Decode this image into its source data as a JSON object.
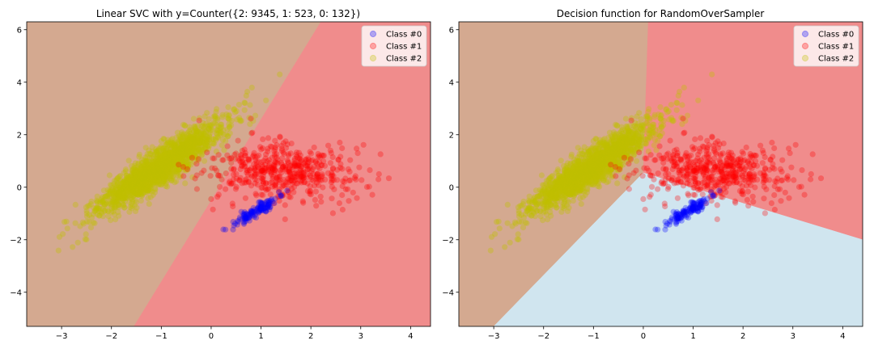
{
  "chart_data": [
    {
      "type": "scatter",
      "title": "Linear SVC with y=Counter({2: 9345, 1: 523, 0: 132})",
      "xlabel": "",
      "ylabel": "",
      "xlim": [
        -3.7,
        4.4
      ],
      "ylim": [
        -5.3,
        6.3
      ],
      "xticks": [
        -3,
        -2,
        -1,
        0,
        1,
        2,
        3,
        4
      ],
      "yticks": [
        -4,
        -2,
        0,
        2,
        4,
        6
      ],
      "grid": false,
      "legend_position": "top-right",
      "regions": [
        {
          "class": "Class #2",
          "color": "#d4a990",
          "polygon": [
            [
              -3.7,
              -5.3
            ],
            [
              -1.55,
              -5.3
            ],
            [
              2.2,
              6.3
            ],
            [
              -3.7,
              6.3
            ]
          ]
        },
        {
          "class": "Class #1",
          "color": "#f08c8c",
          "polygon": [
            [
              -1.55,
              -5.3
            ],
            [
              4.4,
              -5.3
            ],
            [
              4.4,
              6.3
            ],
            [
              2.2,
              6.3
            ]
          ]
        }
      ],
      "series": [
        {
          "name": "Class #0",
          "color": "#0000ff",
          "count": 132,
          "cluster": {
            "center": [
              0.9,
              -0.9
            ],
            "spread_main": 0.38,
            "spread_minor": 0.07,
            "angle_deg": 52
          }
        },
        {
          "name": "Class #1",
          "color": "#ff0000",
          "count": 523,
          "cluster": {
            "center": [
              1.4,
              0.6
            ],
            "spread_main": 0.75,
            "spread_minor": 0.55,
            "angle_deg": -15
          }
        },
        {
          "name": "Class #2",
          "color": "#bfbf00",
          "count": 9345,
          "cluster": {
            "center": [
              -1.0,
              0.8
            ],
            "spread_main": 1.05,
            "spread_minor": 0.22,
            "angle_deg": 55
          }
        }
      ]
    },
    {
      "type": "scatter",
      "title": "Decision function for RandomOverSampler",
      "xlabel": "",
      "ylabel": "",
      "xlim": [
        -3.7,
        4.4
      ],
      "ylim": [
        -5.3,
        6.3
      ],
      "xticks": [
        -3,
        -2,
        -1,
        0,
        1,
        2,
        3,
        4
      ],
      "yticks": [
        -4,
        -2,
        0,
        2,
        4,
        6
      ],
      "grid": false,
      "legend_position": "top-right",
      "regions": [
        {
          "class": "Class #2",
          "color": "#d4a990",
          "polygon": [
            [
              -3.7,
              -5.3
            ],
            [
              -3.0,
              -5.3
            ],
            [
              0.0,
              0.55
            ],
            [
              0.1,
              6.3
            ],
            [
              -3.7,
              6.3
            ]
          ]
        },
        {
          "class": "Class #1",
          "color": "#f08c8c",
          "polygon": [
            [
              0.1,
              6.3
            ],
            [
              0.0,
              0.55
            ],
            [
              4.4,
              -2.0
            ],
            [
              4.4,
              6.3
            ]
          ]
        },
        {
          "class": "Class #0",
          "color": "#d0e5ef",
          "polygon": [
            [
              -3.0,
              -5.3
            ],
            [
              4.4,
              -5.3
            ],
            [
              4.4,
              -2.0
            ],
            [
              0.0,
              0.55
            ]
          ]
        }
      ],
      "series": [
        {
          "name": "Class #0",
          "color": "#0000ff",
          "count": 132,
          "cluster": {
            "center": [
              0.9,
              -0.9
            ],
            "spread_main": 0.38,
            "spread_minor": 0.07,
            "angle_deg": 52
          }
        },
        {
          "name": "Class #1",
          "color": "#ff0000",
          "count": 523,
          "cluster": {
            "center": [
              1.4,
              0.6
            ],
            "spread_main": 0.75,
            "spread_minor": 0.55,
            "angle_deg": -15
          }
        },
        {
          "name": "Class #2",
          "color": "#bfbf00",
          "count": 9345,
          "cluster": {
            "center": [
              -1.0,
              0.8
            ],
            "spread_main": 1.05,
            "spread_minor": 0.22,
            "angle_deg": 55
          }
        }
      ]
    }
  ]
}
